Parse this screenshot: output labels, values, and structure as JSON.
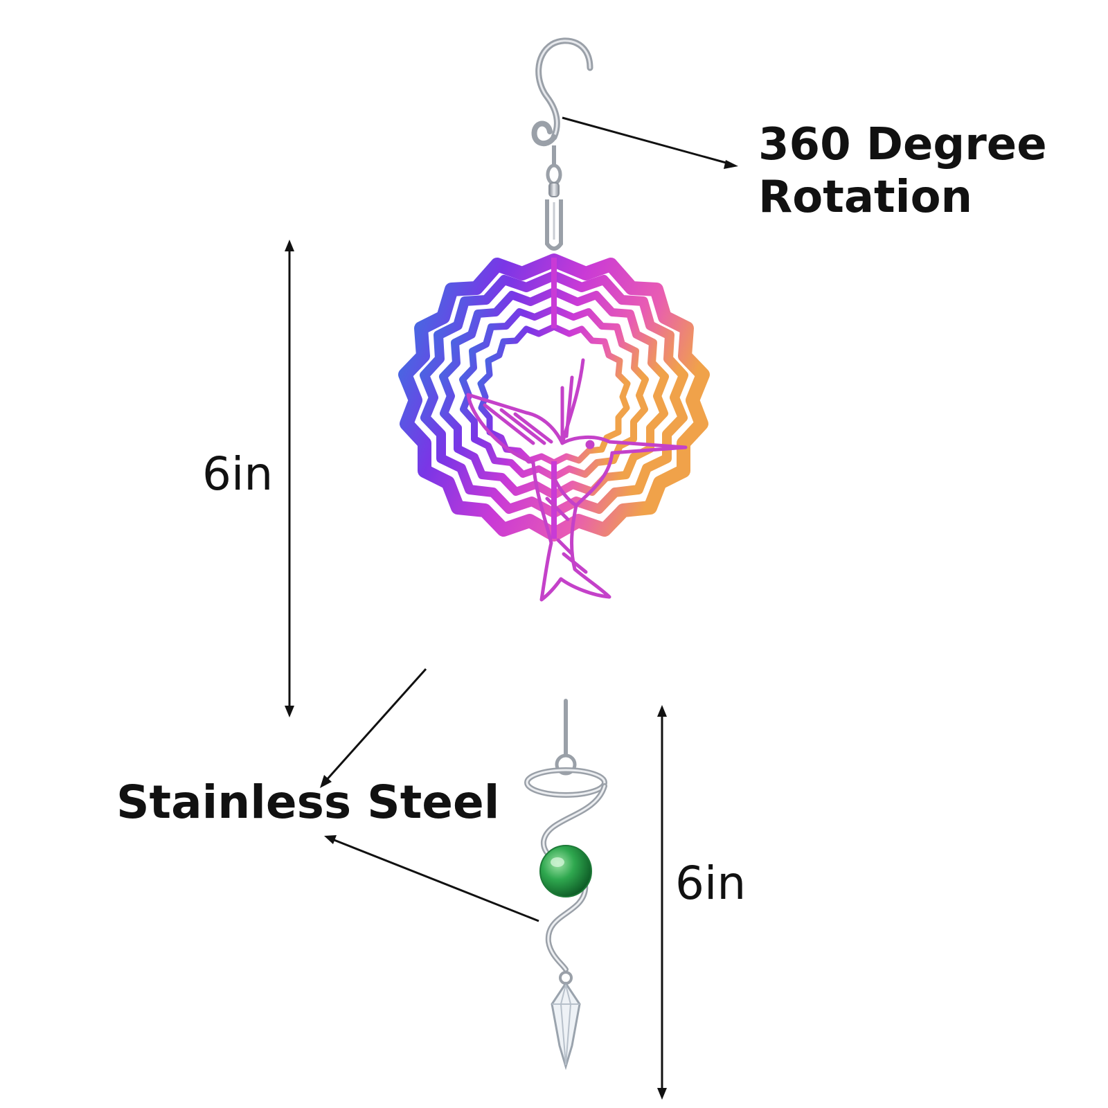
{
  "callouts": {
    "rotation_line1": "360 Degree",
    "rotation_line2": "Rotation",
    "spinner_size": "6in",
    "material": "Stainless Steel",
    "tail_size": "6in"
  },
  "colors": {
    "background": "#ffffff",
    "text": "#111111",
    "spinner_gradient": [
      "#2f7fe0",
      "#7a36e6",
      "#c93ad6",
      "#e85bb4",
      "#f0a24a"
    ],
    "metal": "#b8bcc4",
    "glass_ball": "#2fa84f",
    "crystal": "#e8edf2"
  },
  "product": {
    "type": "hummingbird wind spinner",
    "icons": [
      "hook-icon",
      "swivel-icon",
      "spinner-disc",
      "hummingbird-icon",
      "spiral-tail-icon",
      "glass-ball-icon",
      "crystal-pendant-icon"
    ]
  }
}
